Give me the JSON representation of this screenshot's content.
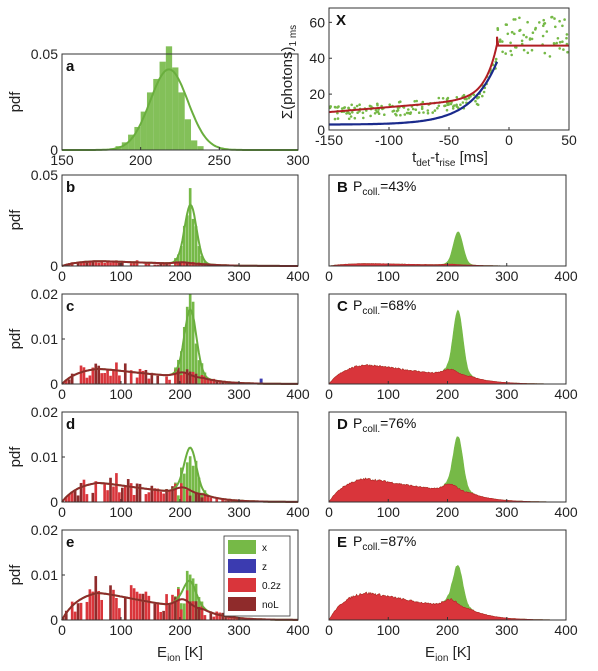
{
  "colors": {
    "x": "#76b947",
    "z": "#3b3bb0",
    "z02": "#d9353b",
    "noL": "#8f2b2b",
    "fitRed": "#b01e24",
    "fitBlue": "#1a2a8c",
    "fitGreen": "#6aae3e"
  },
  "texts": {
    "pdf": "pdf",
    "eion_main": "E",
    "eion_sub": "ion",
    "eion_unit": " [K]",
    "inset_y_main": "Σ(photons)",
    "inset_y_sub": "1 ms",
    "inset_x_t1": "t",
    "inset_x_s1": "det",
    "inset_x_mid": "-t",
    "inset_x_s2": "rise",
    "inset_x_unit": " [ms]",
    "p_main": "P",
    "p_sub": "coll."
  },
  "chart_data": [
    {
      "id": "a",
      "panel": "a",
      "type": "bar",
      "xlim": [
        150,
        300
      ],
      "ylim": [
        0,
        0.05
      ],
      "xticks": [
        "150",
        "200",
        "250",
        "300"
      ],
      "yticks": [
        "0",
        "0.05"
      ],
      "series": [
        {
          "name": "x",
          "bins_center": [
            186,
            190,
            194,
            198,
            202,
            206,
            210,
            214,
            218,
            222,
            226,
            230,
            234,
            238
          ],
          "values": [
            0.002,
            0.004,
            0.008,
            0.012,
            0.02,
            0.03,
            0.037,
            0.046,
            0.054,
            0.043,
            0.03,
            0.016,
            0.005,
            0.002
          ]
        }
      ],
      "fit": {
        "name": "x",
        "mean": 218,
        "sigma": 12,
        "peak": 0.042
      }
    },
    {
      "id": "b",
      "panel": "b",
      "type": "bar",
      "xlim": [
        0,
        400
      ],
      "ylim": [
        0,
        0.05
      ],
      "xticks": [
        "0",
        "100",
        "200",
        "300",
        "400"
      ],
      "yticks": [
        "0",
        "0.05"
      ],
      "x_peak": 0.032,
      "x_sigma": 10,
      "red_plateau": 0.003
    },
    {
      "id": "c",
      "panel": "c",
      "type": "bar",
      "xlim": [
        0,
        400
      ],
      "ylim": [
        0,
        0.02
      ],
      "xticks": [
        "0",
        "100",
        "200",
        "300",
        "400"
      ],
      "yticks": [
        "0",
        "0.01",
        "0.02"
      ],
      "x_peak": 0.0145,
      "x_sigma": 10,
      "red_plateau": 0.0038
    },
    {
      "id": "d",
      "panel": "d",
      "type": "bar",
      "xlim": [
        0,
        400
      ],
      "ylim": [
        0,
        0.02
      ],
      "xticks": [
        "0",
        "100",
        "200",
        "300",
        "400"
      ],
      "yticks": [
        "0",
        "0.01",
        "0.02"
      ],
      "x_peak": 0.0095,
      "x_sigma": 10,
      "red_plateau": 0.0048
    },
    {
      "id": "e",
      "panel": "e",
      "type": "bar",
      "xlim": [
        0,
        400
      ],
      "ylim": [
        0,
        0.02
      ],
      "xticks": [
        "0",
        "100",
        "200",
        "300",
        "400"
      ],
      "yticks": [
        "0",
        "0.01",
        "0.02"
      ],
      "x_peak": 0.005,
      "x_sigma": 10,
      "red_plateau": 0.0068,
      "legend": {
        "placement": "inside-right",
        "entries": [
          "x",
          "z",
          "0.2z",
          "noL"
        ]
      }
    },
    {
      "id": "B",
      "panel": "B",
      "type": "bar",
      "xlim": [
        0,
        400
      ],
      "ylim": [
        0,
        0.05
      ],
      "xticks": [
        "0",
        "100",
        "200",
        "300",
        "400"
      ],
      "yticks": [],
      "p_coll": "=43%",
      "green_peak": 0.018,
      "red_plateau": 0.0015
    },
    {
      "id": "C",
      "panel": "C",
      "type": "bar",
      "xlim": [
        0,
        400
      ],
      "ylim": [
        0,
        0.02
      ],
      "xticks": [
        "0",
        "100",
        "200",
        "300",
        "400"
      ],
      "yticks": [],
      "p_coll": "=68%",
      "green_peak": 0.0138,
      "red_plateau": 0.0048
    },
    {
      "id": "D",
      "panel": "D",
      "type": "bar",
      "xlim": [
        0,
        400
      ],
      "ylim": [
        0,
        0.02
      ],
      "xticks": [
        "0",
        "100",
        "200",
        "300",
        "400"
      ],
      "yticks": [],
      "p_coll": "=76%",
      "green_peak": 0.0115,
      "red_plateau": 0.0058
    },
    {
      "id": "E",
      "panel": "E",
      "type": "bar",
      "xlim": [
        0,
        400
      ],
      "ylim": [
        0,
        0.02
      ],
      "xticks": [
        "0",
        "100",
        "200",
        "300",
        "400"
      ],
      "yticks": [],
      "p_coll": "=87%",
      "green_peak": 0.0085,
      "red_plateau": 0.0068
    },
    {
      "id": "X",
      "panel": "X",
      "type": "scatter",
      "xlim": [
        -150,
        50
      ],
      "ylim": [
        0,
        68
      ],
      "xticks": [
        "-150",
        "-100",
        "-50",
        "0",
        "50"
      ],
      "yticks": [
        "0",
        "20",
        "40",
        "60"
      ],
      "plateau": 47,
      "jump_at": -10
    }
  ]
}
